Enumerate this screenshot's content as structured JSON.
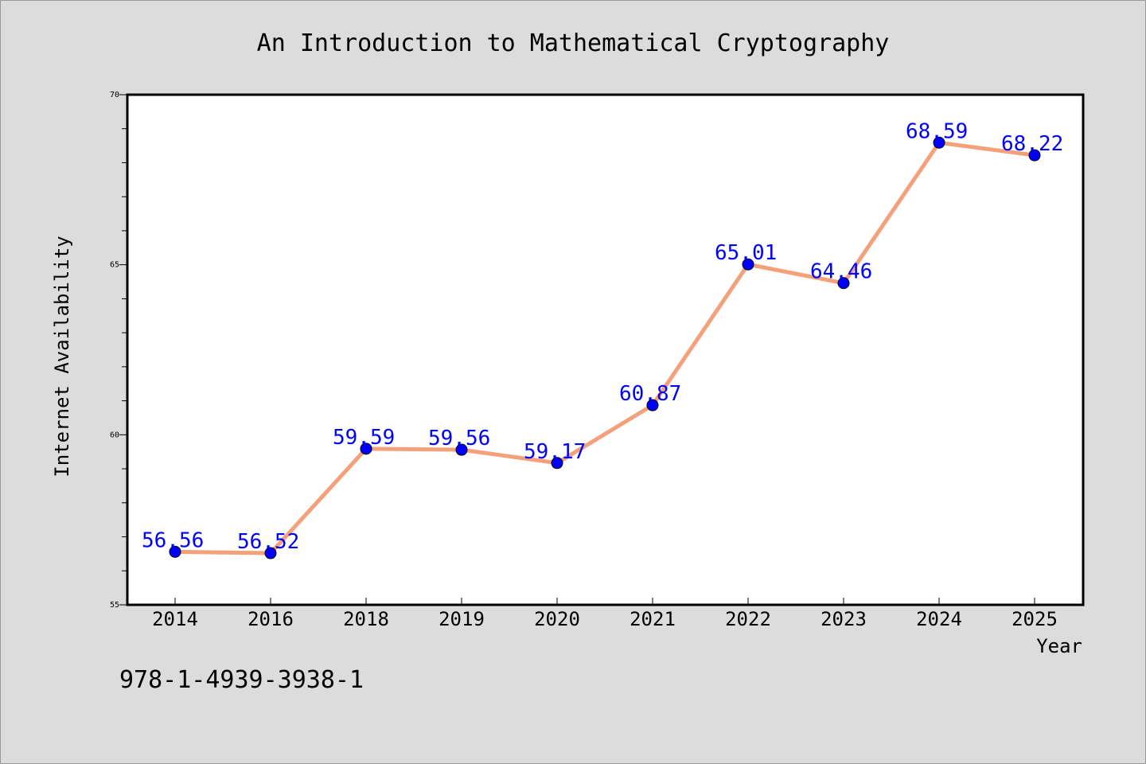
{
  "chart_data": {
    "type": "line",
    "title": "An Introduction to Mathematical Cryptography",
    "xlabel": "Year",
    "ylabel": "Internet Availability",
    "categories": [
      "2014",
      "2016",
      "2018",
      "2019",
      "2020",
      "2021",
      "2022",
      "2023",
      "2024",
      "2025"
    ],
    "series": [
      {
        "values": [
          56.56,
          56.52,
          59.59,
          59.56,
          59.17,
          60.87,
          65.01,
          64.46,
          68.59,
          68.22
        ]
      }
    ],
    "ylim": [
      55,
      70
    ],
    "yticks": [
      55,
      60,
      65,
      70
    ],
    "grid": false,
    "line_color": "#f4a07a",
    "marker_color": "#0000ff",
    "label_color": "#0000ff"
  },
  "footer_text": "978-1-4939-3938-1"
}
